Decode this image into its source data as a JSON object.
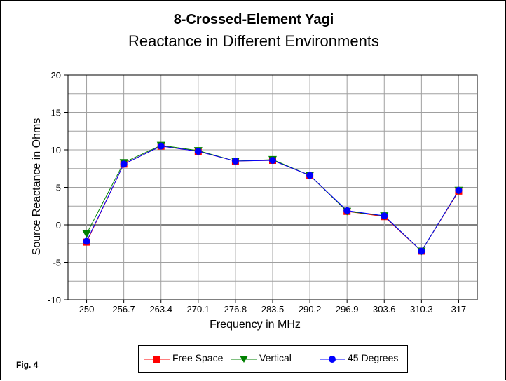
{
  "chart_data": {
    "type": "line",
    "title": "8-Crossed-Element Yagi",
    "subtitle": "Reactance in Different Environments",
    "xlabel": "Frequency in MHz",
    "ylabel": "Source Reactance in Ohms",
    "categories": [
      "250",
      "256.7",
      "263.4",
      "270.1",
      "276.8",
      "283.5",
      "290.2",
      "296.9",
      "303.6",
      "310.3",
      "317"
    ],
    "ylim": [
      -10,
      20
    ],
    "yticks": [
      -10,
      -5,
      0,
      5,
      10,
      15,
      20
    ],
    "grid": true,
    "legend_position": "bottom",
    "series": [
      {
        "name": "Free Space",
        "color": "#ff0000",
        "marker": "square",
        "values": [
          -2.3,
          8.1,
          10.5,
          9.8,
          8.5,
          8.6,
          6.6,
          1.8,
          1.1,
          -3.5,
          4.5
        ]
      },
      {
        "name": "Vertical",
        "color": "#008000",
        "marker": "triangle-down",
        "values": [
          -1.2,
          8.3,
          10.6,
          9.9,
          8.5,
          8.7,
          6.6,
          1.8,
          1.2,
          -3.5,
          4.6
        ]
      },
      {
        "name": "45 Degrees",
        "color": "#0000ff",
        "marker": "circle",
        "values": [
          -2.2,
          8.1,
          10.5,
          9.8,
          8.5,
          8.6,
          6.6,
          1.9,
          1.2,
          -3.5,
          4.6
        ]
      }
    ]
  },
  "fig_label": "Fig. 4"
}
